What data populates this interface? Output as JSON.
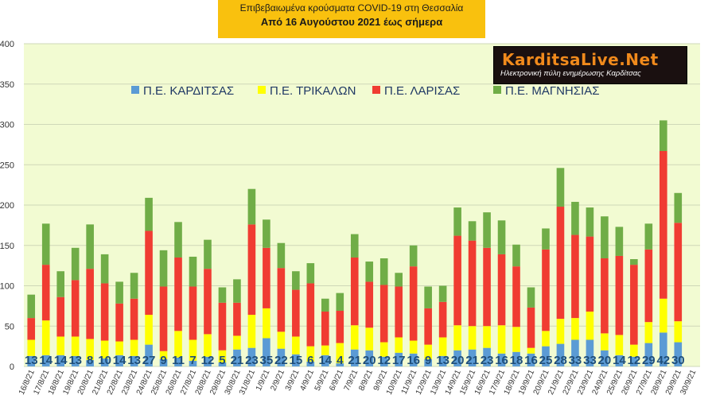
{
  "header": {
    "title": "Επιβεβαιωμένα κρούσματα COVID-19 στη Θεσσαλία",
    "subtitle": "Από 16 Αυγούστου 2021 έως σήμερα"
  },
  "logo": {
    "main": "KarditsaLive.Net",
    "sub": "Ηλεκτρονική πύλη ενημέρωσης Καρδίτσας"
  },
  "colors": {
    "background": "#f2fbd2",
    "karditsa": "#5b9bd5",
    "trikala": "#ffff00",
    "larisa": "#f03c32",
    "magnisia": "#70ad47",
    "label": "#1f4e79"
  },
  "chart_data": {
    "type": "bar",
    "stacked": true,
    "ylim": [
      0,
      400
    ],
    "yticks": [
      0,
      50,
      100,
      150,
      200,
      250,
      300,
      350,
      400
    ],
    "grid": true,
    "legend_position": "top",
    "categories": [
      "16/8/21",
      "17/8/21",
      "18/8/21",
      "19/8/21",
      "20/8/21",
      "21/8/21",
      "22/8/21",
      "23/8/21",
      "24/8/21",
      "25/8/21",
      "26/8/21",
      "27/8/21",
      "28/8/21",
      "29/8/21",
      "30/8/21",
      "31/8/21",
      "1/9/21",
      "2/9/21",
      "3/9/21",
      "4/9/21",
      "5/9/21",
      "6/9/21",
      "7/9/21",
      "8/9/21",
      "9/9/21",
      "10/9/21",
      "11/9/21",
      "12/9/21",
      "13/9/21",
      "14/9/21",
      "15/9/21",
      "16/9/21",
      "17/9/21",
      "18/9/21",
      "19/9/21",
      "20/9/21",
      "21/9/21",
      "22/9/21",
      "23/9/21",
      "24/9/21",
      "25/9/21",
      "26/9/21",
      "27/9/21",
      "28/9/21",
      "29/9/21",
      "30/9/21"
    ],
    "series": [
      {
        "name": "Π.Ε. ΚΑΡΔΙΤΣΑΣ",
        "values": [
          13,
          14,
          14,
          13,
          8,
          10,
          14,
          13,
          27,
          9,
          11,
          7,
          12,
          5,
          21,
          23,
          35,
          22,
          15,
          6,
          14,
          4,
          21,
          20,
          12,
          17,
          16,
          9,
          13,
          20,
          21,
          23,
          16,
          18,
          16,
          25,
          28,
          33,
          33,
          20,
          14,
          12,
          29,
          42,
          30,
          0
        ]
      },
      {
        "name": "Π.Ε. ΤΡΙΚΑΛΩΝ",
        "values": [
          20,
          43,
          23,
          24,
          26,
          22,
          17,
          20,
          37,
          10,
          33,
          26,
          28,
          15,
          17,
          41,
          37,
          21,
          22,
          19,
          12,
          25,
          30,
          28,
          18,
          19,
          16,
          18,
          23,
          31,
          29,
          27,
          35,
          31,
          7,
          19,
          31,
          27,
          35,
          21,
          25,
          15,
          26,
          42,
          26,
          0
        ]
      },
      {
        "name": "Π.Ε. ΛΑΡΙΣΑΣ",
        "values": [
          27,
          69,
          49,
          70,
          87,
          71,
          47,
          51,
          104,
          80,
          91,
          66,
          81,
          59,
          41,
          112,
          75,
          79,
          58,
          78,
          42,
          40,
          84,
          57,
          71,
          63,
          92,
          45,
          44,
          111,
          106,
          97,
          88,
          75,
          50,
          101,
          139,
          103,
          93,
          93,
          98,
          99,
          90,
          183,
          122,
          0
        ]
      },
      {
        "name": "Π.Ε. ΜΑΓΝΗΣΙΑΣ",
        "values": [
          29,
          51,
          32,
          40,
          55,
          36,
          27,
          32,
          41,
          45,
          44,
          37,
          36,
          19,
          29,
          44,
          35,
          31,
          23,
          25,
          16,
          22,
          29,
          25,
          33,
          17,
          26,
          27,
          20,
          35,
          24,
          44,
          42,
          27,
          25,
          26,
          48,
          41,
          36,
          52,
          36,
          7,
          32,
          38,
          37,
          0
        ]
      }
    ],
    "bottom_labels": [
      "13",
      "14",
      "14",
      "13",
      "8",
      "10",
      "14",
      "13",
      "27",
      "9",
      "11",
      "7",
      "12",
      "5",
      "21",
      "23",
      "35",
      "22",
      "15",
      "6",
      "14",
      "4",
      "21",
      "20",
      "12",
      "17",
      "16",
      "9",
      "13",
      "20",
      "21",
      "23",
      "16",
      "18",
      "16",
      "25",
      "28",
      "33",
      "33",
      "20",
      "14",
      "12",
      "29",
      "42",
      "30",
      ""
    ]
  }
}
